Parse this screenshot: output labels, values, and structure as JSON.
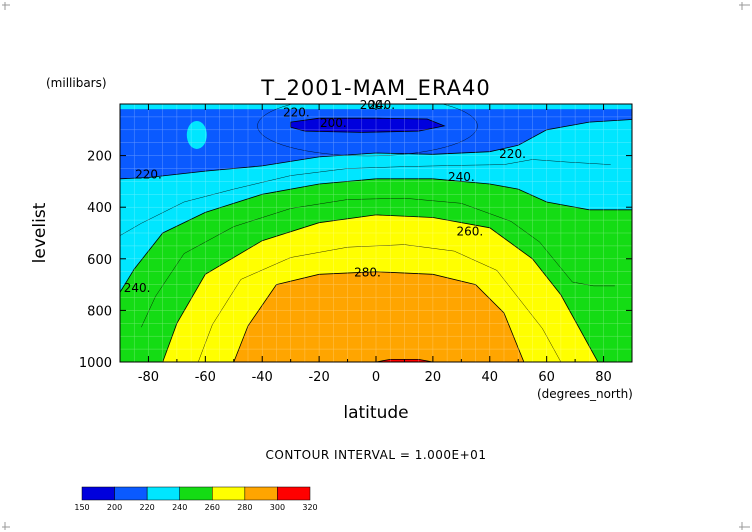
{
  "chart_data": {
    "type": "contour",
    "title": "T_2001-MAM_ERA40",
    "xlabel": "latitude",
    "ylabel": "levelist",
    "x_units": "(degrees_north)",
    "y_units": "(millibars)",
    "xlim": [
      -90,
      90
    ],
    "ylim": [
      0,
      1000
    ],
    "y_inverted": true,
    "x_ticks": [
      -80,
      -60,
      -40,
      -20,
      0,
      20,
      40,
      60,
      80
    ],
    "y_ticks": [
      200,
      400,
      600,
      800,
      1000
    ],
    "contour_interval_text": "CONTOUR INTERVAL = 1.000E+01",
    "fill_levels": [
      150,
      200,
      220,
      240,
      260,
      280,
      300,
      320
    ],
    "fill_colors": [
      "#0000dd",
      "#0a5aff",
      "#00e6ff",
      "#14dc14",
      "#ffff00",
      "#ffa500",
      "#ff0000"
    ],
    "contour_labels": [
      {
        "value": "220.",
        "lat": -80,
        "p": 270
      },
      {
        "value": "220.",
        "lat": -28,
        "p": 30
      },
      {
        "value": "200.",
        "lat": -15,
        "p": 70
      },
      {
        "value": "200.",
        "lat": -1,
        "p": 0
      },
      {
        "value": "240.",
        "lat": 2,
        "p": 0
      },
      {
        "value": "220.",
        "lat": 48,
        "p": 190
      },
      {
        "value": "240.",
        "lat": 30,
        "p": 280
      },
      {
        "value": "260.",
        "lat": 33,
        "p": 490
      },
      {
        "value": "280.",
        "lat": -3,
        "p": 650
      },
      {
        "value": "240.",
        "lat": -84,
        "p": 710
      }
    ],
    "contours": [
      {
        "level": 220,
        "points": [
          [
            -90,
            290
          ],
          [
            -80,
            285
          ],
          [
            -60,
            260
          ],
          [
            -40,
            240
          ],
          [
            -20,
            205
          ],
          [
            0,
            190
          ],
          [
            20,
            195
          ],
          [
            40,
            185
          ],
          [
            50,
            160
          ],
          [
            60,
            100
          ],
          [
            75,
            70
          ],
          [
            90,
            60
          ]
        ]
      },
      {
        "level": 240,
        "points": [
          [
            -90,
            730
          ],
          [
            -85,
            640
          ],
          [
            -75,
            500
          ],
          [
            -60,
            420
          ],
          [
            -40,
            350
          ],
          [
            -20,
            310
          ],
          [
            0,
            290
          ],
          [
            20,
            290
          ],
          [
            40,
            310
          ],
          [
            50,
            330
          ],
          [
            60,
            380
          ],
          [
            75,
            410
          ],
          [
            90,
            410
          ]
        ]
      },
      {
        "level": 260,
        "points": [
          [
            -75,
            1000
          ],
          [
            -70,
            850
          ],
          [
            -60,
            660
          ],
          [
            -40,
            530
          ],
          [
            -20,
            460
          ],
          [
            0,
            430
          ],
          [
            20,
            440
          ],
          [
            40,
            480
          ],
          [
            55,
            600
          ],
          [
            65,
            740
          ],
          [
            78,
            1000
          ]
        ]
      },
      {
        "level": 280,
        "points": [
          [
            -50,
            1000
          ],
          [
            -45,
            860
          ],
          [
            -35,
            700
          ],
          [
            -20,
            660
          ],
          [
            0,
            650
          ],
          [
            20,
            660
          ],
          [
            35,
            700
          ],
          [
            45,
            810
          ],
          [
            52,
            1000
          ]
        ]
      },
      {
        "level": 200,
        "points": [
          [
            -30,
            70
          ],
          [
            -20,
            55
          ],
          [
            0,
            55
          ],
          [
            18,
            58
          ],
          [
            24,
            85
          ],
          [
            15,
            105
          ],
          [
            -5,
            110
          ],
          [
            -25,
            105
          ],
          [
            -30,
            90
          ],
          [
            -30,
            70
          ]
        ]
      },
      {
        "level": 300,
        "points": [
          [
            0,
            1000
          ],
          [
            5,
            990
          ],
          [
            15,
            990
          ],
          [
            20,
            1000
          ]
        ]
      }
    ]
  }
}
